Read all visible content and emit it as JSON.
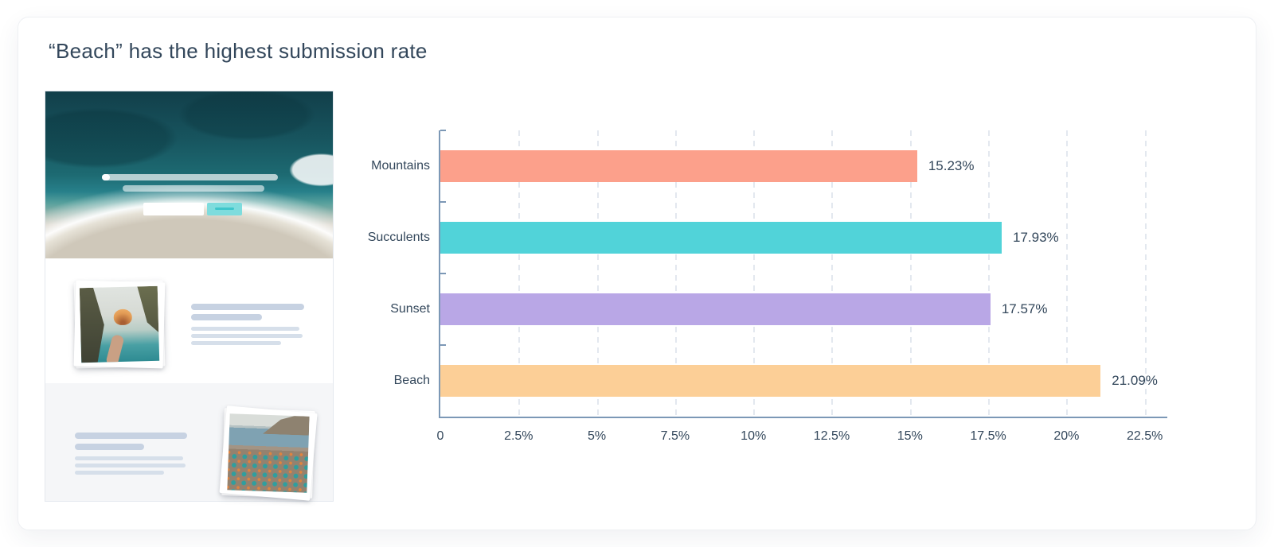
{
  "card": {
    "title": "“Beach” has the highest submission rate"
  },
  "preview": {
    "description": "form-landing-page-thumbnail",
    "hero_photo": "aerial-ocean-beach-photo",
    "body_photo": "hand-holding-seashell-photo",
    "footer_photo": "beach-umbrellas-photo"
  },
  "colors": {
    "title_text": "#33475b",
    "axis": "#7c98b6",
    "gridline": "#e3e8ef",
    "placeholder_dark": "#c7d2e2",
    "placeholder_light": "#d6dfea",
    "preview_button": "#7edcdd",
    "preview_button_accent": "#3ec6cb",
    "section_bg": "#f5f6f8"
  },
  "chart_data": {
    "type": "bar",
    "orientation": "horizontal",
    "title": "“Beach” has the highest submission rate",
    "categories": [
      "Mountains",
      "Succulents",
      "Sunset",
      "Beach"
    ],
    "values": [
      15.23,
      17.93,
      17.57,
      21.09
    ],
    "value_labels": [
      "15.23%",
      "17.93%",
      "17.57%",
      "21.09%"
    ],
    "bar_colors": [
      "#fca08b",
      "#51d3d9",
      "#b9a7e6",
      "#fccf97"
    ],
    "x_ticks": [
      "0",
      "2.5%",
      "5%",
      "7.5%",
      "10%",
      "12.5%",
      "15%",
      "17.5%",
      "20%",
      "22.5%"
    ],
    "x_tick_values": [
      0,
      2.5,
      5,
      7.5,
      10,
      12.5,
      15,
      17.5,
      20,
      22.5
    ],
    "xlim": [
      0,
      23.22
    ],
    "ylabel": "",
    "xlabel": "",
    "grid": "dashed-vertical",
    "legend": "none"
  }
}
